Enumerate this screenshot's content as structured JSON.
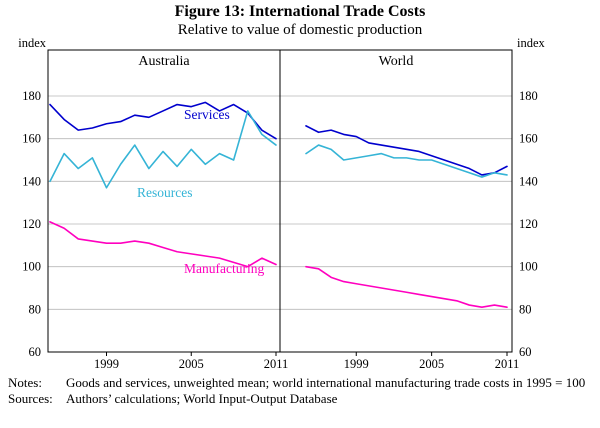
{
  "chart_data": {
    "type": "line",
    "title": "Figure 13: International Trade Costs",
    "subtitle": "Relative to value of domestic production",
    "unit_label": "index",
    "ylim": [
      60,
      180
    ],
    "ytick_step": 20,
    "grid": "horizontal",
    "legend_position": "inline-labels",
    "x": [
      1995,
      1996,
      1997,
      1998,
      1999,
      2000,
      2001,
      2002,
      2003,
      2004,
      2005,
      2006,
      2007,
      2008,
      2009,
      2010,
      2011
    ],
    "xticks": [
      1999,
      2005,
      2011
    ],
    "panels": [
      {
        "title": "Australia",
        "series": [
          {
            "name": "Services",
            "color": "#0000cd",
            "values": [
              176,
              169,
              164,
              165,
              167,
              168,
              171,
              170,
              173,
              176,
              175,
              177,
              173,
              176,
              172,
              164,
              160
            ]
          },
          {
            "name": "Resources",
            "color": "#35b4d6",
            "values": [
              140,
              153,
              146,
              151,
              137,
              148,
              157,
              146,
              154,
              147,
              155,
              148,
              153,
              150,
              173,
              162,
              157
            ]
          },
          {
            "name": "Manufacturing",
            "color": "#ff00bf",
            "values": [
              121,
              118,
              113,
              112,
              111,
              111,
              112,
              111,
              109,
              107,
              106,
              105,
              104,
              102,
              100,
              104,
              101
            ]
          }
        ]
      },
      {
        "title": "World",
        "series": [
          {
            "name": "Services",
            "color": "#0000cd",
            "values": [
              166,
              163,
              164,
              162,
              161,
              158,
              157,
              156,
              155,
              154,
              152,
              150,
              148,
              146,
              143,
              144,
              147
            ]
          },
          {
            "name": "Resources",
            "color": "#35b4d6",
            "values": [
              153,
              157,
              155,
              150,
              151,
              152,
              153,
              151,
              151,
              150,
              150,
              148,
              146,
              144,
              142,
              144,
              143
            ]
          },
          {
            "name": "Manufacturing",
            "color": "#ff00bf",
            "values": [
              100,
              99,
              95,
              93,
              92,
              91,
              90,
              89,
              88,
              87,
              86,
              85,
              84,
              82,
              81,
              82,
              81
            ]
          }
        ]
      }
    ]
  },
  "footnotes": {
    "notes_label": "Notes:",
    "notes_text": "Goods and services, unweighted mean; world international manufacturing trade costs in 1995 = 100",
    "sources_label": "Sources:",
    "sources_text": "Authors’ calculations; World Input-Output Database"
  }
}
